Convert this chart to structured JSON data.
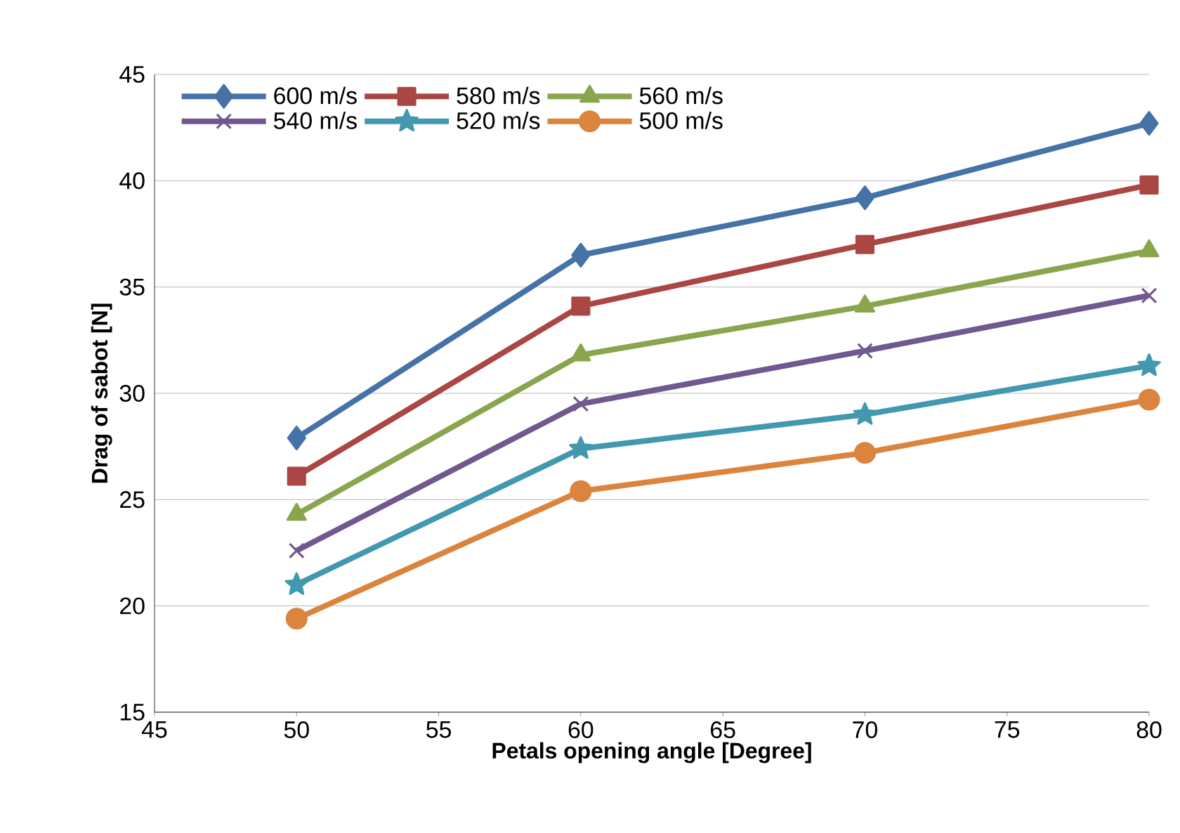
{
  "chart_data": {
    "type": "line",
    "xlabel": "Petals opening angle [Degree]",
    "ylabel": "Drag of sabot [N]",
    "x": [
      50,
      60,
      70,
      80
    ],
    "series": [
      {
        "name": "600 m/s",
        "color": "#4572a7",
        "marker": "diamond",
        "values": [
          27.9,
          36.5,
          39.2,
          42.7
        ]
      },
      {
        "name": "580 m/s",
        "color": "#aa4643",
        "marker": "square",
        "values": [
          26.1,
          34.1,
          37.0,
          39.8
        ]
      },
      {
        "name": "560 m/s",
        "color": "#89a54e",
        "marker": "triangle",
        "values": [
          24.3,
          31.8,
          34.1,
          36.7
        ]
      },
      {
        "name": "540 m/s",
        "color": "#71588f",
        "marker": "cross",
        "values": [
          22.6,
          29.5,
          32.0,
          34.6
        ]
      },
      {
        "name": "520 m/s",
        "color": "#4198af",
        "marker": "star",
        "values": [
          21.0,
          27.4,
          29.0,
          31.3
        ]
      },
      {
        "name": "500 m/s",
        "color": "#db843d",
        "marker": "circle",
        "values": [
          19.4,
          25.4,
          27.2,
          29.7
        ]
      }
    ],
    "xlim": [
      45,
      80
    ],
    "xticks": [
      45,
      50,
      55,
      60,
      65,
      70,
      75,
      80
    ],
    "ylim": [
      15,
      45
    ],
    "yticks": [
      15,
      20,
      25,
      30,
      35,
      40,
      45
    ],
    "grid": "y",
    "legend": "top left",
    "line_style": "solid"
  }
}
